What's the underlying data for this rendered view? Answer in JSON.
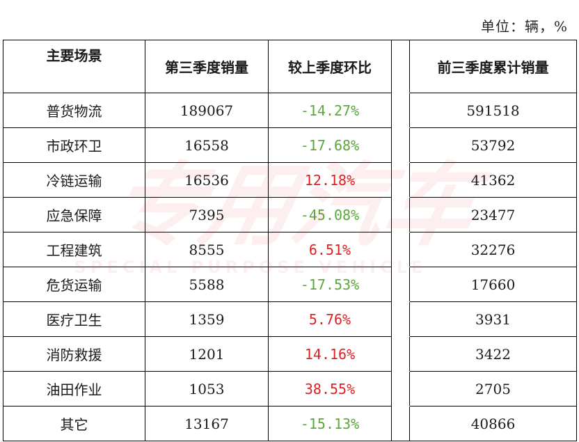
{
  "unit": "单位：辆，%",
  "columns": {
    "scene": "主要场景",
    "q3_sales": "第三季度销量",
    "qoq": "较上季度环比",
    "ytd_sales": "前三季度累计销量"
  },
  "rows": [
    {
      "scene": "普货物流",
      "q3_sales": "189067",
      "qoq": "-14.27%",
      "ytd_sales": "591518"
    },
    {
      "scene": "市政环卫",
      "q3_sales": "16558",
      "qoq": "-17.68%",
      "ytd_sales": "53792"
    },
    {
      "scene": "冷链运输",
      "q3_sales": "16536",
      "qoq": "12.18%",
      "ytd_sales": "41362"
    },
    {
      "scene": "应急保障",
      "q3_sales": "7395",
      "qoq": "-45.08%",
      "ytd_sales": "23477"
    },
    {
      "scene": "工程建筑",
      "q3_sales": "8555",
      "qoq": "6.51%",
      "ytd_sales": "32276"
    },
    {
      "scene": "危货运输",
      "q3_sales": "5588",
      "qoq": "-17.53%",
      "ytd_sales": "17660"
    },
    {
      "scene": "医疗卫生",
      "q3_sales": "1359",
      "qoq": "5.76%",
      "ytd_sales": "3931"
    },
    {
      "scene": "消防救援",
      "q3_sales": "1201",
      "qoq": "14.16%",
      "ytd_sales": "3422"
    },
    {
      "scene": "油田作业",
      "q3_sales": "1053",
      "qoq": "38.55%",
      "ytd_sales": "2705"
    },
    {
      "scene": "其它",
      "q3_sales": "13167",
      "qoq": "-15.13%",
      "ytd_sales": "40866"
    }
  ],
  "colors": {
    "negative": "#5aa83a",
    "positive": "#e02020",
    "watermark": "#e83030"
  },
  "watermark": {
    "main": "专用汽车",
    "sub": "SPECIAL PURPOSE VEHICLE"
  }
}
